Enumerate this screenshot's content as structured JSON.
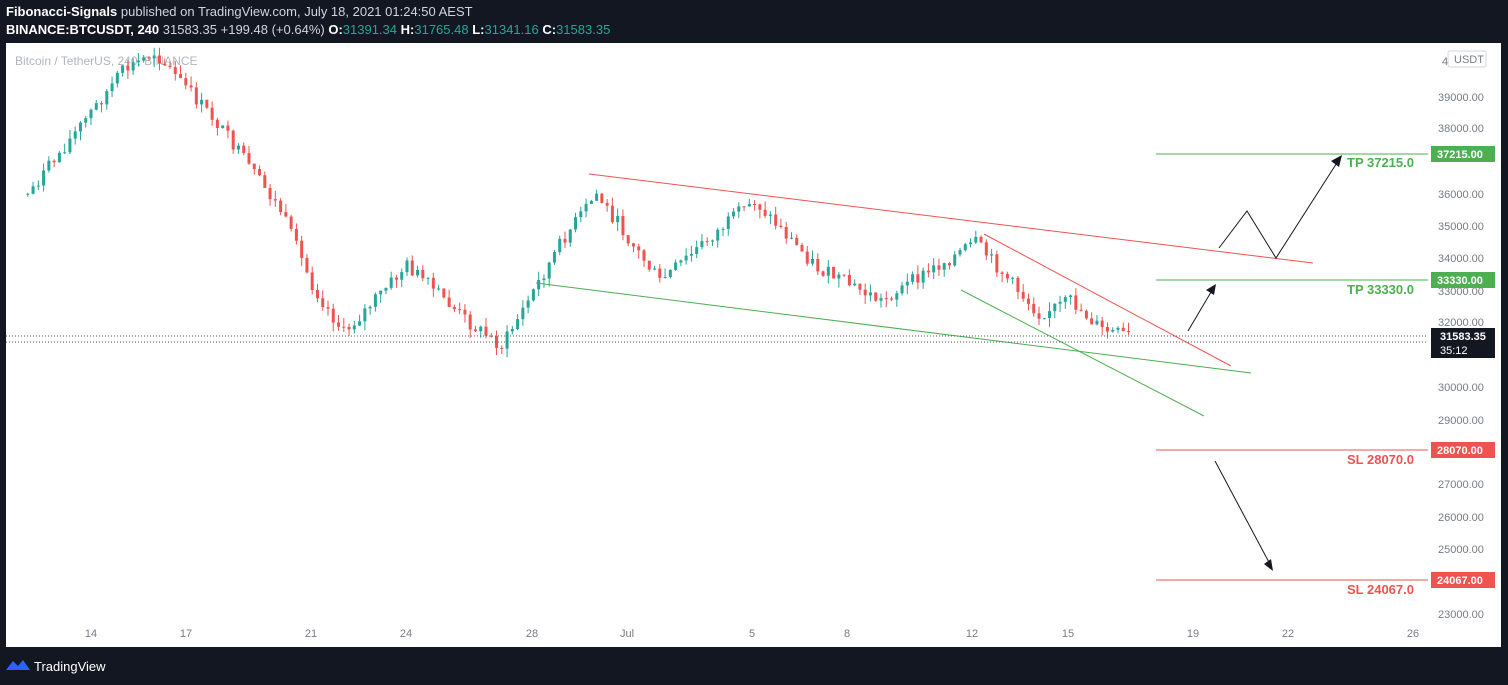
{
  "header": {
    "author": "Fibonacci-Signals",
    "published_text": "published on TradingView.com, July 18, 2021 01:24:50 AEST",
    "symbol": "BINANCE:BTCUSDT, 240",
    "last": "31583.35",
    "change": "+199.48 (+0.64%)",
    "o_label": "O:",
    "o_value": "31391.34",
    "h_label": "H:",
    "h_value": "31765.48",
    "l_label": "L:",
    "l_value": "31341.16",
    "c_label": "C:",
    "c_value": "31583.35"
  },
  "chart": {
    "watermark": "Bitcoin / TetherUS, 240, BINANCE",
    "currency_badge": "USDT",
    "price_axis": [
      "39000.00",
      "38000.00",
      "36000.00",
      "35000.00",
      "34000.00",
      "33000.00",
      "32000.00",
      "30000.00",
      "29000.00",
      "27000.00",
      "26000.00",
      "25000.00",
      "23000.00"
    ],
    "top_tick_partial": "4",
    "date_axis": [
      "14",
      "17",
      "21",
      "24",
      "28",
      "Jul",
      "5",
      "8",
      "12",
      "15",
      "19",
      "22",
      "26"
    ],
    "current_price": "31583.35",
    "countdown": "35:12",
    "levels": [
      {
        "label": "TP 37215.0",
        "badge": "37215.00",
        "color": "#4caf50"
      },
      {
        "label": "TP 33330.0",
        "badge": "33330.00",
        "color": "#4caf50"
      },
      {
        "label": "SL 28070.0",
        "badge": "28070.00",
        "color": "#ef5350"
      },
      {
        "label": "SL 24067.0",
        "badge": "24067.00",
        "color": "#ef5350"
      }
    ],
    "colors": {
      "up": "#26a69a",
      "down": "#ef5350",
      "upper_trend": "#ef5350",
      "lower_trend": "#4caf50"
    }
  },
  "chart_data": {
    "type": "candlestick",
    "symbol": "BTCUSDT",
    "interval": "240",
    "exchange": "BINANCE",
    "ylim": [
      22800,
      40700
    ],
    "x_ticks": [
      "14",
      "17",
      "21",
      "24",
      "28",
      "Jul",
      "5",
      "8",
      "12",
      "15",
      "19",
      "22",
      "26"
    ],
    "y_ticks": [
      23000,
      25000,
      26000,
      27000,
      29000,
      30000,
      32000,
      33000,
      34000,
      35000,
      36000,
      38000,
      39000
    ],
    "approx_closes": [
      {
        "date": "Jun 12",
        "price": 36000
      },
      {
        "date": "Jun 15",
        "price": 39800
      },
      {
        "date": "Jun 16",
        "price": 40400
      },
      {
        "date": "Jun 18",
        "price": 38200
      },
      {
        "date": "Jun 20",
        "price": 35500
      },
      {
        "date": "Jun 21",
        "price": 33200
      },
      {
        "date": "Jun 22",
        "price": 31700
      },
      {
        "date": "Jun 24",
        "price": 33800
      },
      {
        "date": "Jun 26",
        "price": 32000
      },
      {
        "date": "Jun 27",
        "price": 31300
      },
      {
        "date": "Jun 29",
        "price": 34700
      },
      {
        "date": "Jun 30",
        "price": 36000
      },
      {
        "date": "Jul 2",
        "price": 33300
      },
      {
        "date": "Jul 4",
        "price": 35000
      },
      {
        "date": "Jul 5",
        "price": 35800
      },
      {
        "date": "Jul 7",
        "price": 33700
      },
      {
        "date": "Jul 9",
        "price": 32700
      },
      {
        "date": "Jul 11",
        "price": 33900
      },
      {
        "date": "Jul 12",
        "price": 34500
      },
      {
        "date": "Jul 14",
        "price": 32300
      },
      {
        "date": "Jul 15",
        "price": 32700
      },
      {
        "date": "Jul 16",
        "price": 31800
      },
      {
        "date": "Jul 17",
        "price": 31583.35
      }
    ],
    "levels": {
      "tp": [
        37215.0,
        33330.0
      ],
      "sl": [
        28070.0,
        24067.0
      ]
    }
  }
}
